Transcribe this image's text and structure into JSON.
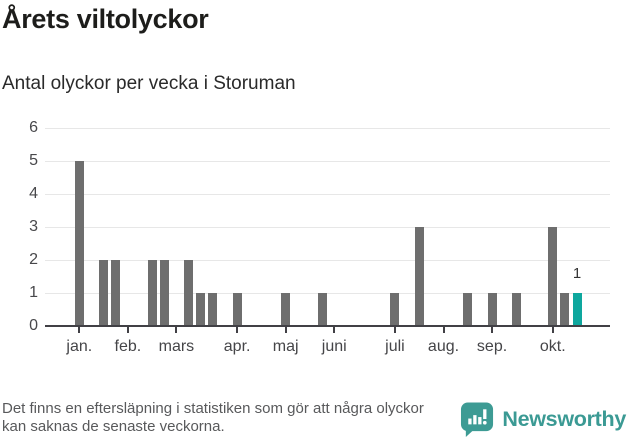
{
  "header": {
    "title": "Årets viltolyckor",
    "subtitle": "Antal olyckor per vecka i Storuman"
  },
  "chart_data": {
    "type": "bar",
    "title": "Årets viltolyckor",
    "subtitle": "Antal olyckor per vecka i Storuman",
    "x_unit": "week of year",
    "x_weeks_start": 1,
    "values": [
      5,
      0,
      2,
      2,
      0,
      0,
      2,
      2,
      0,
      2,
      1,
      1,
      0,
      1,
      0,
      0,
      0,
      1,
      0,
      0,
      1,
      0,
      0,
      0,
      0,
      0,
      1,
      0,
      3,
      0,
      0,
      0,
      1,
      0,
      1,
      0,
      1,
      0,
      0,
      3,
      1,
      1
    ],
    "ylim": [
      0,
      6
    ],
    "yticks": [
      0,
      1,
      2,
      3,
      4,
      5,
      6
    ],
    "month_ticks": [
      {
        "label": "jan.",
        "week": 1
      },
      {
        "label": "feb.",
        "week": 5
      },
      {
        "label": "mars",
        "week": 9
      },
      {
        "label": "apr.",
        "week": 14
      },
      {
        "label": "maj",
        "week": 18
      },
      {
        "label": "juni",
        "week": 22
      },
      {
        "label": "juli",
        "week": 27
      },
      {
        "label": "aug.",
        "week": 31
      },
      {
        "label": "sep.",
        "week": 35
      },
      {
        "label": "okt.",
        "week": 40
      }
    ],
    "highlight_week": 42,
    "highlight_value_label": "1",
    "grid": true,
    "legend": null
  },
  "footer": {
    "note": "Det finns en eftersläpning i statistiken som gör att några olyckor kan saknas de senaste veckorna.",
    "brand": "Newsworthy"
  },
  "colors": {
    "bar": "#6e6e6e",
    "highlight": "#0ea79e",
    "brand_teal": "#3d9b94",
    "axis": "#414045",
    "grid": "#e7e7e7",
    "title_text": "#1d1d1b",
    "muted_text": "#58595b"
  }
}
